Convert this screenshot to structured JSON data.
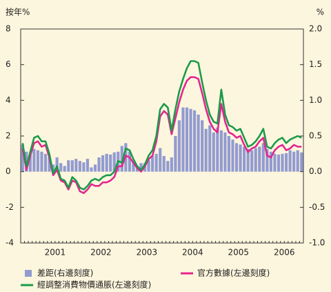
{
  "chart_data": {
    "type": "bar-line",
    "y_label": "按年%",
    "y2_label": "%",
    "categories": [
      null,
      null,
      null,
      null,
      null,
      null,
      null,
      null,
      null,
      "2001",
      null,
      null,
      null,
      null,
      null,
      null,
      null,
      null,
      null,
      null,
      null,
      "2002",
      null,
      null,
      null,
      null,
      null,
      null,
      null,
      null,
      null,
      null,
      null,
      "2003",
      null,
      null,
      null,
      null,
      null,
      null,
      null,
      null,
      null,
      null,
      null,
      "2004",
      null,
      null,
      null,
      null,
      null,
      null,
      null,
      null,
      null,
      null,
      null,
      "2005",
      null,
      null,
      null,
      null,
      null,
      null,
      null,
      null,
      null,
      null,
      null,
      "2006",
      null,
      null,
      null,
      null
    ],
    "ylim": [
      -4,
      8
    ],
    "yticks": [
      -4,
      -2,
      0,
      2,
      4,
      6,
      8
    ],
    "y2lim": [
      -1,
      2
    ],
    "y2ticks": [
      {
        "value": -1,
        "label": "-1.0"
      },
      {
        "value": -0.5,
        "label": "-0.5"
      },
      {
        "value": 0,
        "label": "0.0"
      },
      {
        "value": 0.5,
        "label": "0.5"
      },
      {
        "value": 1,
        "label": "1.0"
      },
      {
        "value": 1.5,
        "label": "1.5"
      },
      {
        "value": 2,
        "label": "2.0"
      }
    ],
    "grid": false,
    "legend": "bottom",
    "series": [
      {
        "name": "差距(右邊刻度)",
        "type": "bar",
        "axis": "y2",
        "color": "#929bd0",
        "values": [
          0.38,
          0.28,
          0.25,
          0.32,
          0.3,
          0.28,
          0.25,
          0.2,
          0.1,
          0.2,
          0.12,
          0.08,
          0.16,
          0.16,
          0.18,
          0.15,
          0.13,
          0.18,
          0.06,
          0.1,
          0.2,
          0.23,
          0.25,
          0.24,
          0.27,
          0.28,
          0.36,
          0.4,
          0.28,
          0.14,
          0.08,
          0.12,
          0.12,
          0.16,
          0.22,
          0.25,
          0.33,
          0.22,
          0.15,
          0.2,
          0.5,
          0.72,
          0.9,
          0.9,
          0.88,
          0.86,
          0.8,
          0.72,
          0.6,
          0.65,
          0.55,
          0.62,
          0.58,
          0.55,
          0.5,
          0.45,
          0.4,
          0.38,
          0.35,
          0.32,
          0.3,
          0.33,
          0.35,
          0.4,
          0.32,
          0.28,
          0.25,
          0.24,
          0.25,
          0.26,
          0.3,
          0.28,
          0.3,
          0.27
        ]
      },
      {
        "name": "官方數據(左邊刻度)",
        "type": "line",
        "color": "#e2268f",
        "values": [
          1.3,
          0.1,
          0.9,
          1.6,
          1.7,
          1.4,
          1.5,
          0.8,
          -0.2,
          0.1,
          -0.5,
          -0.6,
          -1.0,
          -0.5,
          -0.6,
          -1.1,
          -1.2,
          -1.0,
          -0.7,
          -0.8,
          -0.8,
          -0.6,
          -0.6,
          -0.5,
          -0.3,
          0.3,
          0.3,
          0.9,
          0.8,
          0.5,
          0.2,
          0.0,
          0.3,
          0.7,
          0.9,
          1.7,
          3.1,
          3.4,
          3.2,
          2.1,
          3.0,
          3.9,
          4.6,
          5.1,
          5.3,
          5.3,
          5.2,
          4.4,
          3.5,
          2.8,
          2.4,
          2.2,
          3.8,
          2.8,
          2.2,
          2.1,
          1.9,
          2.0,
          1.5,
          1.1,
          1.3,
          1.4,
          1.7,
          1.9,
          0.9,
          0.8,
          1.2,
          1.4,
          1.5,
          1.2,
          1.3,
          1.5,
          1.4,
          1.4
        ]
      },
      {
        "name": "經調整消費物價通脹(左邊刻度)",
        "type": "line",
        "color": "#1b9b4b",
        "values": [
          1.6,
          0.3,
          1.1,
          1.9,
          2.0,
          1.7,
          1.7,
          1.0,
          -0.1,
          0.3,
          -0.4,
          -0.5,
          -0.9,
          -0.3,
          -0.5,
          -0.9,
          -1.0,
          -0.8,
          -0.5,
          -0.4,
          -0.5,
          -0.3,
          -0.2,
          -0.2,
          0.0,
          0.6,
          0.5,
          1.3,
          1.2,
          0.7,
          0.3,
          0.1,
          0.4,
          0.9,
          1.2,
          2.0,
          3.5,
          3.8,
          3.6,
          2.3,
          3.5,
          4.5,
          5.2,
          5.8,
          6.2,
          6.2,
          6.1,
          5.0,
          4.0,
          3.2,
          2.8,
          2.7,
          4.6,
          3.2,
          2.6,
          2.5,
          2.3,
          2.4,
          1.9,
          1.4,
          1.5,
          1.7,
          2.0,
          2.4,
          1.4,
          1.3,
          1.6,
          1.8,
          1.9,
          1.6,
          1.8,
          1.9,
          2.0,
          1.9
        ]
      }
    ]
  }
}
